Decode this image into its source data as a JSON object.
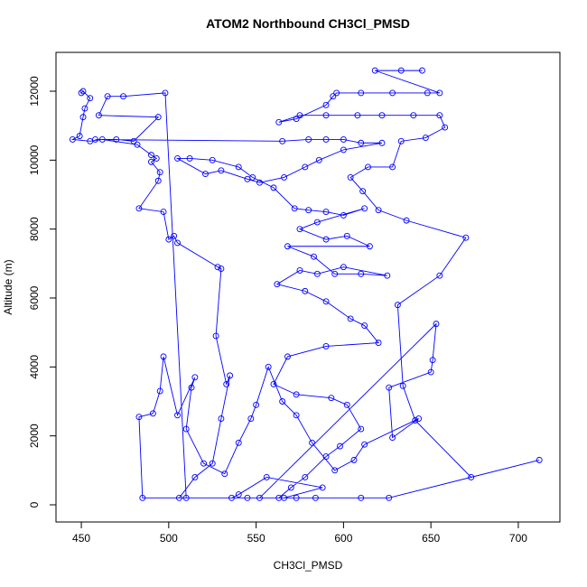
{
  "chart_data": {
    "type": "line",
    "title": "ATOM2 Northbound CH3Cl_PMSD",
    "x_label": "CH3Cl_PMSD",
    "y_label": "Altitude (m)",
    "x": [
      450,
      451,
      455,
      452,
      451,
      449,
      445,
      455,
      462,
      482,
      490,
      493,
      490,
      495,
      494,
      483,
      497,
      500,
      503,
      505,
      528,
      530,
      527,
      533,
      535,
      530,
      525,
      515,
      506,
      510,
      498,
      474,
      465,
      460,
      494,
      480,
      470,
      458,
      565,
      580,
      590,
      600,
      610,
      622,
      600,
      586,
      578,
      566,
      552,
      545,
      530,
      521,
      505,
      512,
      525,
      540,
      548,
      560,
      572,
      580,
      590,
      600,
      612,
      585,
      575,
      590,
      602,
      615,
      568,
      583,
      595,
      610,
      625,
      600,
      585,
      575,
      562,
      578,
      590,
      604,
      612,
      620,
      590,
      568,
      560,
      573,
      593,
      602,
      610,
      598,
      590,
      578,
      570,
      563,
      573,
      566,
      588,
      556,
      540,
      536,
      545,
      552,
      653,
      651,
      650,
      626,
      628,
      643,
      612,
      606,
      595,
      582,
      573,
      565,
      557,
      550,
      547,
      540,
      532,
      520,
      510,
      513,
      515,
      505,
      497,
      495,
      491,
      483,
      485,
      584,
      610,
      626,
      712,
      673,
      641,
      634,
      631,
      655,
      670,
      636,
      620,
      611,
      604,
      614,
      628,
      633,
      647,
      658,
      655,
      640,
      622,
      608,
      590,
      575,
      563,
      573,
      590,
      594,
      596,
      610,
      628,
      648,
      655,
      618,
      633,
      645
    ],
    "series": [
      {
        "color": "#0000ff",
        "values": [
          11950,
          12000,
          11800,
          11500,
          11250,
          10700,
          10600,
          10550,
          10600,
          10450,
          10150,
          10050,
          9950,
          9650,
          9400,
          8600,
          8500,
          7700,
          7800,
          7600,
          6900,
          6850,
          4900,
          3500,
          3750,
          2500,
          1200,
          800,
          200,
          200,
          11950,
          11850,
          11850,
          11300,
          11250,
          10550,
          10600,
          10600,
          10550,
          10600,
          10600,
          10600,
          10500,
          10500,
          10300,
          10000,
          9800,
          9500,
          9350,
          9450,
          9700,
          9600,
          10050,
          10050,
          10000,
          9800,
          9500,
          9200,
          8600,
          8550,
          8500,
          8400,
          8600,
          8200,
          8000,
          7700,
          7800,
          7500,
          7500,
          7200,
          6700,
          6700,
          6650,
          6900,
          6700,
          6800,
          6400,
          6200,
          5900,
          5400,
          5200,
          4700,
          4600,
          4300,
          3500,
          3200,
          3100,
          2900,
          2200,
          1700,
          1400,
          800,
          500,
          200,
          200,
          200,
          500,
          800,
          300,
          200,
          200,
          200,
          5250,
          4200,
          3850,
          3400,
          1950,
          2500,
          1750,
          1300,
          1000,
          1800,
          2600,
          3000,
          4000,
          2900,
          2500,
          1800,
          900,
          1200,
          2200,
          3400,
          3700,
          2600,
          4300,
          3300,
          2650,
          2550,
          200,
          200,
          200,
          200,
          1300,
          800,
          2450,
          3450,
          5800,
          6650,
          7750,
          8250,
          8550,
          9100,
          9500,
          9800,
          9800,
          10550,
          10650,
          10950,
          11300,
          11300,
          11300,
          11300,
          11300,
          11300,
          11100,
          11200,
          11600,
          11850,
          11950,
          11950,
          11950,
          11950,
          11950,
          12600,
          12600,
          12600
        ]
      }
    ],
    "xlim": [
      435.5,
      723.8
    ],
    "ylim": [
      -498,
      13127
    ],
    "xticks": [
      450,
      500,
      550,
      600,
      650,
      700
    ],
    "yticks": [
      0,
      2000,
      4000,
      6000,
      8000,
      10000,
      12000
    ]
  }
}
